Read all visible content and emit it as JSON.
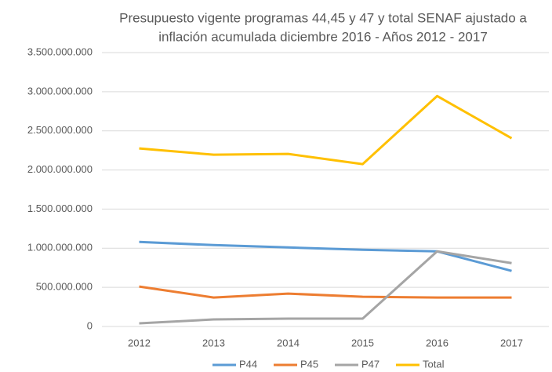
{
  "chart_data": {
    "type": "line",
    "title": [
      "Presupuesto vigente programas 44,45 y 47 y total SENAF ajustado a",
      "inflación acumulada diciembre 2016 - Años 2012 - 2017"
    ],
    "categories": [
      "2012",
      "2013",
      "2014",
      "2015",
      "2016",
      "2017"
    ],
    "series": [
      {
        "name": "P44",
        "color": "#5b9bd5",
        "values": [
          1080000000,
          1040000000,
          1010000000,
          980000000,
          960000000,
          710000000
        ]
      },
      {
        "name": "P45",
        "color": "#ed7d31",
        "values": [
          510000000,
          370000000,
          420000000,
          380000000,
          370000000,
          370000000
        ]
      },
      {
        "name": "P47",
        "color": "#a5a5a5",
        "values": [
          40000000,
          90000000,
          100000000,
          100000000,
          960000000,
          810000000
        ]
      },
      {
        "name": "Total",
        "color": "#ffc000",
        "values": [
          2275000000,
          2195000000,
          2205000000,
          2075000000,
          2945000000,
          2405000000
        ]
      }
    ],
    "ylim": [
      0,
      3500000000
    ],
    "yticks": [
      0,
      {
        "value": 500000000,
        "label": "500.000.000"
      },
      {
        "value": 1000000000,
        "label": "1.000.000.000"
      },
      {
        "value": 1500000000,
        "label": "1.500.000.000"
      },
      {
        "value": 2000000000,
        "label": "2.000.000.000"
      },
      {
        "value": 2500000000,
        "label": "2.500.000.000"
      },
      {
        "value": 3000000000,
        "label": "3.000.000.000"
      },
      {
        "value": 3500000000,
        "label": "3.500.000.000"
      }
    ],
    "grid": true,
    "legend": "bottom"
  }
}
